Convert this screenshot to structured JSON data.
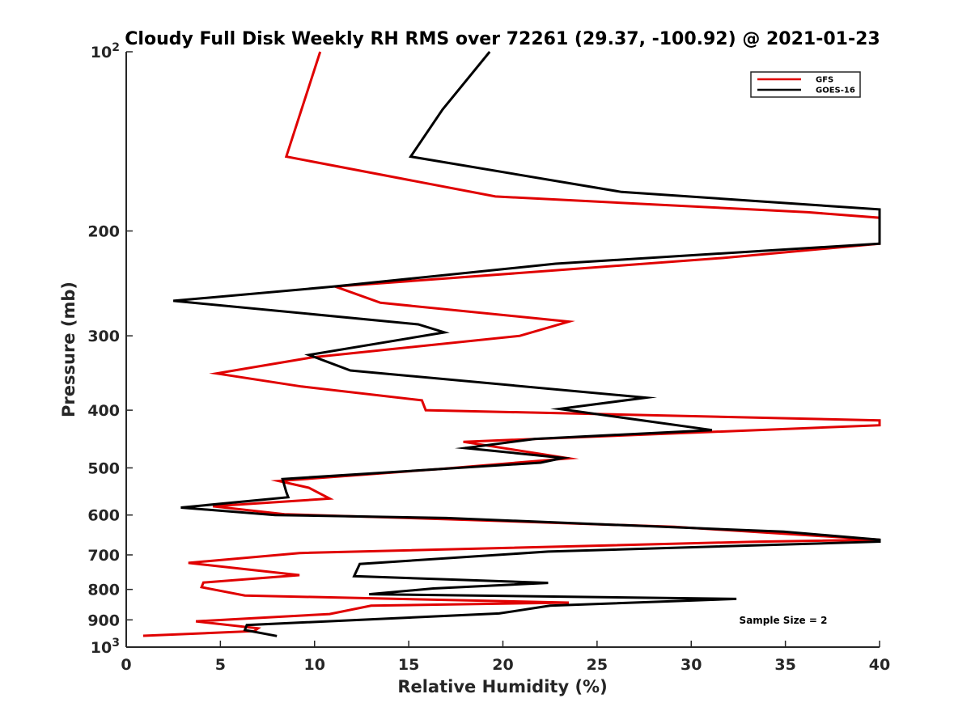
{
  "chart_data": {
    "type": "line",
    "title": "Cloudy Full Disk Weekly RH RMS over 72261 (29.37, -100.92) @ 2021-01-23",
    "xlabel": "Relative Humidity (%)",
    "ylabel": "Pressure (mb)",
    "xlim": [
      0,
      40
    ],
    "ylim": [
      100,
      1000
    ],
    "yscale": "log",
    "y_reversed": true,
    "x_ticks": [
      "0",
      "5",
      "10",
      "15",
      "20",
      "25",
      "30",
      "35",
      "40"
    ],
    "y_ticks": [
      {
        "value": 100,
        "base": "10",
        "exp": "2",
        "label": ""
      },
      {
        "value": 200,
        "label": "200"
      },
      {
        "value": 300,
        "label": "300"
      },
      {
        "value": 400,
        "label": "400"
      },
      {
        "value": 500,
        "label": "500"
      },
      {
        "value": 600,
        "label": "600"
      },
      {
        "value": 700,
        "label": "700"
      },
      {
        "value": 800,
        "label": "800"
      },
      {
        "value": 900,
        "label": "900"
      },
      {
        "value": 1000,
        "base": "10",
        "exp": "3",
        "label": ""
      }
    ],
    "grid": false,
    "legend_position": "top-right",
    "series": [
      {
        "name": "GFS",
        "color": "#e00000",
        "points": [
          [
            10.3,
            100
          ],
          [
            8.5,
            150
          ],
          [
            19.6,
            175
          ],
          [
            36.2,
            186
          ],
          [
            40,
            190
          ],
          [
            40,
            210
          ],
          [
            31.7,
            222
          ],
          [
            11.1,
            248
          ],
          [
            13.5,
            264
          ],
          [
            23.5,
            284
          ],
          [
            20.9,
            300
          ],
          [
            9.9,
            326
          ],
          [
            4.8,
            347
          ],
          [
            9.3,
            365
          ],
          [
            15.7,
            385
          ],
          [
            15.9,
            400
          ],
          [
            40,
            416
          ],
          [
            40,
            424
          ],
          [
            17.9,
            452
          ],
          [
            23.5,
            482
          ],
          [
            16.7,
            502
          ],
          [
            8.1,
            526
          ],
          [
            9.7,
            540
          ],
          [
            10.8,
            563
          ],
          [
            4.6,
            580
          ],
          [
            8.4,
            598
          ],
          [
            17.2,
            610
          ],
          [
            29.1,
            628
          ],
          [
            40,
            660
          ],
          [
            33.6,
            665
          ],
          [
            9.2,
            695
          ],
          [
            3.3,
            722
          ],
          [
            9.2,
            757
          ],
          [
            4.1,
            779
          ],
          [
            4.0,
            793
          ],
          [
            6.3,
            819
          ],
          [
            23.5,
            842
          ],
          [
            13.0,
            852
          ],
          [
            10.8,
            880
          ],
          [
            3.7,
            905
          ],
          [
            7.0,
            930
          ],
          [
            6.8,
            940
          ],
          [
            0.9,
            957
          ]
        ]
      },
      {
        "name": "GOES-16",
        "color": "#000000",
        "points": [
          [
            19.3,
            100
          ],
          [
            16.8,
            125
          ],
          [
            15.1,
            150
          ],
          [
            26.3,
            172
          ],
          [
            40,
            184
          ],
          [
            40,
            210
          ],
          [
            22.8,
            227
          ],
          [
            11.0,
            248
          ],
          [
            2.5,
            262
          ],
          [
            15.5,
            287
          ],
          [
            16.9,
            296
          ],
          [
            9.7,
            323
          ],
          [
            11.9,
            343
          ],
          [
            27.6,
            381
          ],
          [
            23.0,
            398
          ],
          [
            31.1,
            432
          ],
          [
            21.7,
            447
          ],
          [
            18.0,
            463
          ],
          [
            23.2,
            481
          ],
          [
            22.0,
            490
          ],
          [
            8.3,
            522
          ],
          [
            8.5,
            549
          ],
          [
            8.6,
            560
          ],
          [
            2.9,
            583
          ],
          [
            7.9,
            600
          ],
          [
            17.0,
            607
          ],
          [
            34.9,
            640
          ],
          [
            40,
            660
          ],
          [
            40,
            665
          ],
          [
            22.4,
            691
          ],
          [
            12.4,
            725
          ],
          [
            12.1,
            760
          ],
          [
            22.4,
            780
          ],
          [
            16.3,
            797
          ],
          [
            12.9,
            815
          ],
          [
            32.4,
            830
          ],
          [
            22.5,
            852
          ],
          [
            19.8,
            878
          ],
          [
            6.4,
            918
          ],
          [
            6.3,
            936
          ],
          [
            8.0,
            958
          ]
        ]
      }
    ],
    "annotations": [
      {
        "text": "Sample Size = 2"
      }
    ]
  }
}
